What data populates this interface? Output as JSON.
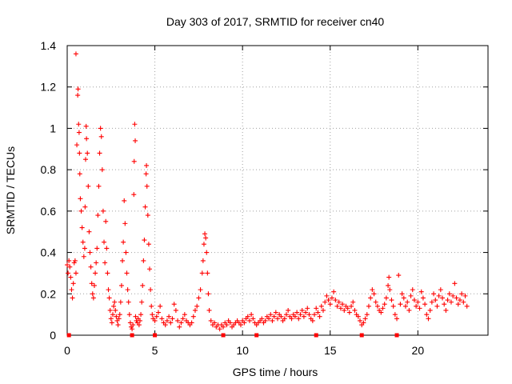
{
  "chart_data": {
    "type": "scatter",
    "title": "Day 303 of 2017, SRMTID for receiver cn40",
    "xlabel": "GPS time / hours",
    "ylabel": "SRMTID / TECUs",
    "xlim": [
      0,
      24
    ],
    "ylim": [
      0,
      1.4
    ],
    "xticks": [
      0,
      5,
      10,
      15,
      20
    ],
    "yticks": [
      0,
      0.2,
      0.4,
      0.6,
      0.8,
      1,
      1.2,
      1.4
    ],
    "xtick_labels": [
      "0",
      "5",
      "10",
      "15",
      "20"
    ],
    "ytick_labels": [
      "0",
      "0.2",
      "0.4",
      "0.6",
      "0.8",
      "1",
      "1.2",
      "1.4"
    ],
    "grid": true,
    "marker": "+",
    "color": "#ff0000",
    "series": [
      {
        "name": "SRMTID",
        "points": [
          [
            0.0,
            0.34
          ],
          [
            0.05,
            0.3
          ],
          [
            0.1,
            0.36
          ],
          [
            0.15,
            0.33
          ],
          [
            0.2,
            0.28
          ],
          [
            0.25,
            0.22
          ],
          [
            0.3,
            0.18
          ],
          [
            0.35,
            0.25
          ],
          [
            0.4,
            0.35
          ],
          [
            0.45,
            0.36
          ],
          [
            0.5,
            0.3
          ],
          [
            0.5,
            1.36
          ],
          [
            0.55,
            0.92
          ],
          [
            0.6,
            1.16
          ],
          [
            0.62,
            1.19
          ],
          [
            0.65,
            1.02
          ],
          [
            0.68,
            0.98
          ],
          [
            0.7,
            0.88
          ],
          [
            0.72,
            0.78
          ],
          [
            0.75,
            0.66
          ],
          [
            0.8,
            0.6
          ],
          [
            0.85,
            0.52
          ],
          [
            0.9,
            0.45
          ],
          [
            0.95,
            0.38
          ],
          [
            1.0,
            0.42
          ],
          [
            1.02,
            0.62
          ],
          [
            1.05,
            0.85
          ],
          [
            1.08,
            1.01
          ],
          [
            1.1,
            0.95
          ],
          [
            1.15,
            0.88
          ],
          [
            1.2,
            0.72
          ],
          [
            1.25,
            0.5
          ],
          [
            1.3,
            0.4
          ],
          [
            1.35,
            0.33
          ],
          [
            1.4,
            0.25
          ],
          [
            1.45,
            0.2
          ],
          [
            1.5,
            0.18
          ],
          [
            1.55,
            0.24
          ],
          [
            1.6,
            0.3
          ],
          [
            1.65,
            0.35
          ],
          [
            1.7,
            0.42
          ],
          [
            1.75,
            0.58
          ],
          [
            1.8,
            0.72
          ],
          [
            1.85,
            0.88
          ],
          [
            1.9,
            1.0
          ],
          [
            1.95,
            0.96
          ],
          [
            2.0,
            0.8
          ],
          [
            2.05,
            0.6
          ],
          [
            2.1,
            0.45
          ],
          [
            2.15,
            0.35
          ],
          [
            2.2,
            0.55
          ],
          [
            2.25,
            0.42
          ],
          [
            2.3,
            0.3
          ],
          [
            2.35,
            0.22
          ],
          [
            2.4,
            0.18
          ],
          [
            2.45,
            0.12
          ],
          [
            2.5,
            0.08
          ],
          [
            2.55,
            0.06
          ],
          [
            2.6,
            0.1
          ],
          [
            2.65,
            0.14
          ],
          [
            2.7,
            0.16
          ],
          [
            2.75,
            0.12
          ],
          [
            2.8,
            0.09
          ],
          [
            2.85,
            0.07
          ],
          [
            2.9,
            0.05
          ],
          [
            2.95,
            0.08
          ],
          [
            3.0,
            0.1
          ],
          [
            3.05,
            0.16
          ],
          [
            3.1,
            0.24
          ],
          [
            3.15,
            0.36
          ],
          [
            3.2,
            0.45
          ],
          [
            3.25,
            0.65
          ],
          [
            3.3,
            0.54
          ],
          [
            3.35,
            0.4
          ],
          [
            3.4,
            0.3
          ],
          [
            3.45,
            0.22
          ],
          [
            3.5,
            0.16
          ],
          [
            3.55,
            0.1
          ],
          [
            3.6,
            0.06
          ],
          [
            3.65,
            0.04
          ],
          [
            3.7,
            0.03
          ],
          [
            3.75,
            0.05
          ],
          [
            3.8,
            0.68
          ],
          [
            3.82,
            0.84
          ],
          [
            3.85,
            1.02
          ],
          [
            3.88,
            0.94
          ],
          [
            3.9,
            0.09
          ],
          [
            3.95,
            0.07
          ],
          [
            4.0,
            0.06
          ],
          [
            4.05,
            0.08
          ],
          [
            4.1,
            0.05
          ],
          [
            4.15,
            0.07
          ],
          [
            4.2,
            0.1
          ],
          [
            4.25,
            0.16
          ],
          [
            4.3,
            0.24
          ],
          [
            4.35,
            0.36
          ],
          [
            4.4,
            0.46
          ],
          [
            4.45,
            0.62
          ],
          [
            4.5,
            0.78
          ],
          [
            4.52,
            0.82
          ],
          [
            4.55,
            0.72
          ],
          [
            4.6,
            0.58
          ],
          [
            4.65,
            0.44
          ],
          [
            4.7,
            0.32
          ],
          [
            4.75,
            0.22
          ],
          [
            4.8,
            0.14
          ],
          [
            4.85,
            0.1
          ],
          [
            4.9,
            0.08
          ],
          [
            5.0,
            0.07
          ],
          [
            5.1,
            0.09
          ],
          [
            5.2,
            0.11
          ],
          [
            5.3,
            0.14
          ],
          [
            5.4,
            0.08
          ],
          [
            5.5,
            0.06
          ],
          [
            5.6,
            0.05
          ],
          [
            5.7,
            0.07
          ],
          [
            5.8,
            0.09
          ],
          [
            5.9,
            0.06
          ],
          [
            6.0,
            0.08
          ],
          [
            6.1,
            0.15
          ],
          [
            6.2,
            0.12
          ],
          [
            6.3,
            0.07
          ],
          [
            6.4,
            0.04
          ],
          [
            6.5,
            0.06
          ],
          [
            6.6,
            0.08
          ],
          [
            6.7,
            0.1
          ],
          [
            6.8,
            0.07
          ],
          [
            6.9,
            0.06
          ],
          [
            7.0,
            0.05
          ],
          [
            7.1,
            0.06
          ],
          [
            7.2,
            0.09
          ],
          [
            7.3,
            0.12
          ],
          [
            7.4,
            0.14
          ],
          [
            7.5,
            0.18
          ],
          [
            7.6,
            0.22
          ],
          [
            7.7,
            0.3
          ],
          [
            7.75,
            0.36
          ],
          [
            7.8,
            0.44
          ],
          [
            7.85,
            0.49
          ],
          [
            7.9,
            0.47
          ],
          [
            7.95,
            0.4
          ],
          [
            8.0,
            0.3
          ],
          [
            8.05,
            0.2
          ],
          [
            8.1,
            0.12
          ],
          [
            8.2,
            0.07
          ],
          [
            8.3,
            0.05
          ],
          [
            8.4,
            0.06
          ],
          [
            8.5,
            0.04
          ],
          [
            8.6,
            0.05
          ],
          [
            8.7,
            0.03
          ],
          [
            8.8,
            0.05
          ],
          [
            8.9,
            0.04
          ],
          [
            9.0,
            0.06
          ],
          [
            9.1,
            0.05
          ],
          [
            9.2,
            0.07
          ],
          [
            9.3,
            0.06
          ],
          [
            9.4,
            0.04
          ],
          [
            9.5,
            0.05
          ],
          [
            9.6,
            0.06
          ],
          [
            9.7,
            0.07
          ],
          [
            9.8,
            0.06
          ],
          [
            9.9,
            0.05
          ],
          [
            10.0,
            0.07
          ],
          [
            10.1,
            0.06
          ],
          [
            10.2,
            0.08
          ],
          [
            10.3,
            0.09
          ],
          [
            10.4,
            0.07
          ],
          [
            10.5,
            0.1
          ],
          [
            10.6,
            0.08
          ],
          [
            10.7,
            0.06
          ],
          [
            10.8,
            0.05
          ],
          [
            10.9,
            0.06
          ],
          [
            11.0,
            0.07
          ],
          [
            11.1,
            0.08
          ],
          [
            11.2,
            0.06
          ],
          [
            11.3,
            0.07
          ],
          [
            11.4,
            0.09
          ],
          [
            11.5,
            0.08
          ],
          [
            11.6,
            0.1
          ],
          [
            11.7,
            0.07
          ],
          [
            11.8,
            0.09
          ],
          [
            11.9,
            0.11
          ],
          [
            12.0,
            0.08
          ],
          [
            12.1,
            0.1
          ],
          [
            12.2,
            0.09
          ],
          [
            12.3,
            0.07
          ],
          [
            12.4,
            0.08
          ],
          [
            12.5,
            0.1
          ],
          [
            12.6,
            0.12
          ],
          [
            12.7,
            0.09
          ],
          [
            12.8,
            0.08
          ],
          [
            12.9,
            0.1
          ],
          [
            13.0,
            0.09
          ],
          [
            13.1,
            0.11
          ],
          [
            13.2,
            0.08
          ],
          [
            13.3,
            0.1
          ],
          [
            13.4,
            0.12
          ],
          [
            13.5,
            0.09
          ],
          [
            13.6,
            0.11
          ],
          [
            13.7,
            0.13
          ],
          [
            13.8,
            0.1
          ],
          [
            13.9,
            0.08
          ],
          [
            14.0,
            0.07
          ],
          [
            14.1,
            0.1
          ],
          [
            14.2,
            0.13
          ],
          [
            14.3,
            0.11
          ],
          [
            14.4,
            0.09
          ],
          [
            14.5,
            0.14
          ],
          [
            14.6,
            0.12
          ],
          [
            14.7,
            0.16
          ],
          [
            14.8,
            0.19
          ],
          [
            14.9,
            0.17
          ],
          [
            15.0,
            0.15
          ],
          [
            15.1,
            0.18
          ],
          [
            15.2,
            0.21
          ],
          [
            15.3,
            0.17
          ],
          [
            15.4,
            0.14
          ],
          [
            15.5,
            0.16
          ],
          [
            15.6,
            0.13
          ],
          [
            15.7,
            0.15
          ],
          [
            15.8,
            0.12
          ],
          [
            15.9,
            0.14
          ],
          [
            16.0,
            0.13
          ],
          [
            16.1,
            0.11
          ],
          [
            16.2,
            0.14
          ],
          [
            16.3,
            0.16
          ],
          [
            16.4,
            0.12
          ],
          [
            16.5,
            0.1
          ],
          [
            16.6,
            0.09
          ],
          [
            16.7,
            0.07
          ],
          [
            16.8,
            0.05
          ],
          [
            16.9,
            0.06
          ],
          [
            17.0,
            0.08
          ],
          [
            17.1,
            0.1
          ],
          [
            17.2,
            0.14
          ],
          [
            17.3,
            0.18
          ],
          [
            17.4,
            0.22
          ],
          [
            17.5,
            0.2
          ],
          [
            17.6,
            0.16
          ],
          [
            17.7,
            0.14
          ],
          [
            17.8,
            0.12
          ],
          [
            17.9,
            0.11
          ],
          [
            18.0,
            0.13
          ],
          [
            18.1,
            0.15
          ],
          [
            18.2,
            0.18
          ],
          [
            18.3,
            0.24
          ],
          [
            18.35,
            0.28
          ],
          [
            18.4,
            0.22
          ],
          [
            18.5,
            0.17
          ],
          [
            18.6,
            0.14
          ],
          [
            18.7,
            0.1
          ],
          [
            18.8,
            0.08
          ],
          [
            18.9,
            0.29
          ],
          [
            19.0,
            0.15
          ],
          [
            19.1,
            0.2
          ],
          [
            19.2,
            0.18
          ],
          [
            19.3,
            0.14
          ],
          [
            19.4,
            0.16
          ],
          [
            19.5,
            0.12
          ],
          [
            19.6,
            0.19
          ],
          [
            19.7,
            0.22
          ],
          [
            19.8,
            0.17
          ],
          [
            19.9,
            0.14
          ],
          [
            20.0,
            0.16
          ],
          [
            20.1,
            0.13
          ],
          [
            20.2,
            0.21
          ],
          [
            20.3,
            0.18
          ],
          [
            20.4,
            0.15
          ],
          [
            20.5,
            0.1
          ],
          [
            20.6,
            0.08
          ],
          [
            20.7,
            0.12
          ],
          [
            20.8,
            0.16
          ],
          [
            20.9,
            0.2
          ],
          [
            21.0,
            0.17
          ],
          [
            21.1,
            0.14
          ],
          [
            21.2,
            0.19
          ],
          [
            21.3,
            0.22
          ],
          [
            21.4,
            0.18
          ],
          [
            21.5,
            0.15
          ],
          [
            21.6,
            0.12
          ],
          [
            21.7,
            0.17
          ],
          [
            21.8,
            0.2
          ],
          [
            21.9,
            0.16
          ],
          [
            22.0,
            0.19
          ],
          [
            22.1,
            0.25
          ],
          [
            22.2,
            0.18
          ],
          [
            22.3,
            0.15
          ],
          [
            22.4,
            0.17
          ],
          [
            22.5,
            0.2
          ],
          [
            22.6,
            0.16
          ],
          [
            22.7,
            0.19
          ],
          [
            22.8,
            0.14
          ]
        ]
      },
      {
        "name": "zero-markers",
        "marker": "square",
        "points": [
          [
            0.1,
            0
          ],
          [
            3.7,
            0
          ],
          [
            5.0,
            0
          ],
          [
            8.9,
            0
          ],
          [
            10.8,
            0
          ],
          [
            14.2,
            0
          ],
          [
            16.8,
            0
          ],
          [
            18.8,
            0
          ]
        ]
      }
    ]
  }
}
